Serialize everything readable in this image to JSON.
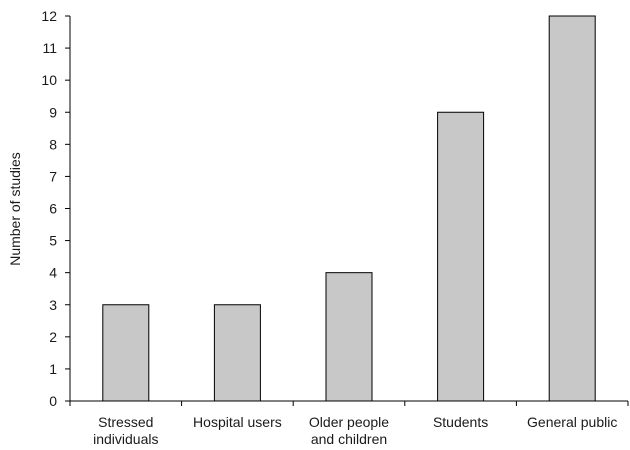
{
  "chart_data": {
    "type": "bar",
    "title": "",
    "xlabel": "",
    "ylabel": "Number of studies",
    "ylim": [
      0,
      12
    ],
    "y_ticks": [
      0,
      1,
      2,
      3,
      4,
      5,
      6,
      7,
      8,
      9,
      10,
      11,
      12
    ],
    "categories": [
      [
        "Stressed",
        "individuals"
      ],
      [
        "Hospital users"
      ],
      [
        "Older people",
        "and children"
      ],
      [
        "Students"
      ],
      [
        "General public"
      ]
    ],
    "values": [
      3,
      3,
      4,
      9,
      12
    ],
    "grid": false,
    "legend": "none",
    "colors": {
      "bar_fill": "#c8c8c8",
      "bar_stroke": "#000000",
      "axis": "#000000",
      "text": "#1a1a1a"
    }
  }
}
